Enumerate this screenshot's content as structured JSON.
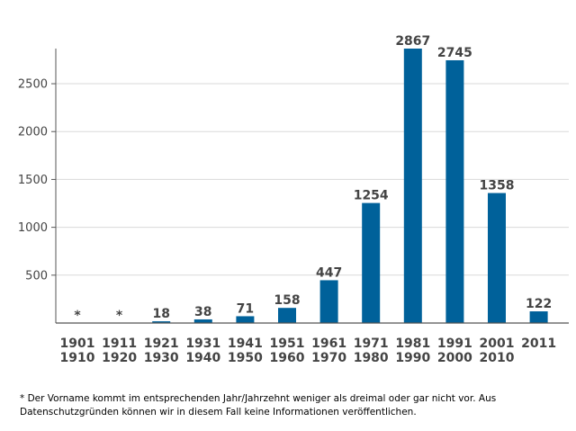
{
  "colors": {
    "bar": "#00619A",
    "axis": "#555555",
    "grid": "#d9d9d9",
    "label": "#444444"
  },
  "chart_data": {
    "type": "bar",
    "title": "",
    "xlabel": "",
    "ylabel": "",
    "categories": [
      {
        "top": "1901",
        "bottom": "1910"
      },
      {
        "top": "1911",
        "bottom": "1920"
      },
      {
        "top": "1921",
        "bottom": "1930"
      },
      {
        "top": "1931",
        "bottom": "1940"
      },
      {
        "top": "1941",
        "bottom": "1950"
      },
      {
        "top": "1951",
        "bottom": "1960"
      },
      {
        "top": "1961",
        "bottom": "1970"
      },
      {
        "top": "1971",
        "bottom": "1980"
      },
      {
        "top": "1981",
        "bottom": "1990"
      },
      {
        "top": "1991",
        "bottom": "2000"
      },
      {
        "top": "2001",
        "bottom": "2010"
      },
      {
        "top": "2011",
        "bottom": ""
      }
    ],
    "values": [
      0,
      0,
      18,
      38,
      71,
      158,
      447,
      1254,
      2867,
      2745,
      1358,
      122
    ],
    "value_labels": [
      "*",
      "*",
      "18",
      "38",
      "71",
      "158",
      "447",
      "1254",
      "2867",
      "2745",
      "1358",
      "122"
    ],
    "yticks": [
      500,
      1000,
      1500,
      2000,
      2500
    ],
    "ylim": [
      0,
      2867
    ],
    "grid": true
  },
  "footnote": "* Der Vorname kommt im entsprechenden Jahr/Jahrzehnt weniger als dreimal oder gar nicht vor. Aus Datenschutzgründen können wir in diesem Fall keine Informationen veröffentlichen."
}
